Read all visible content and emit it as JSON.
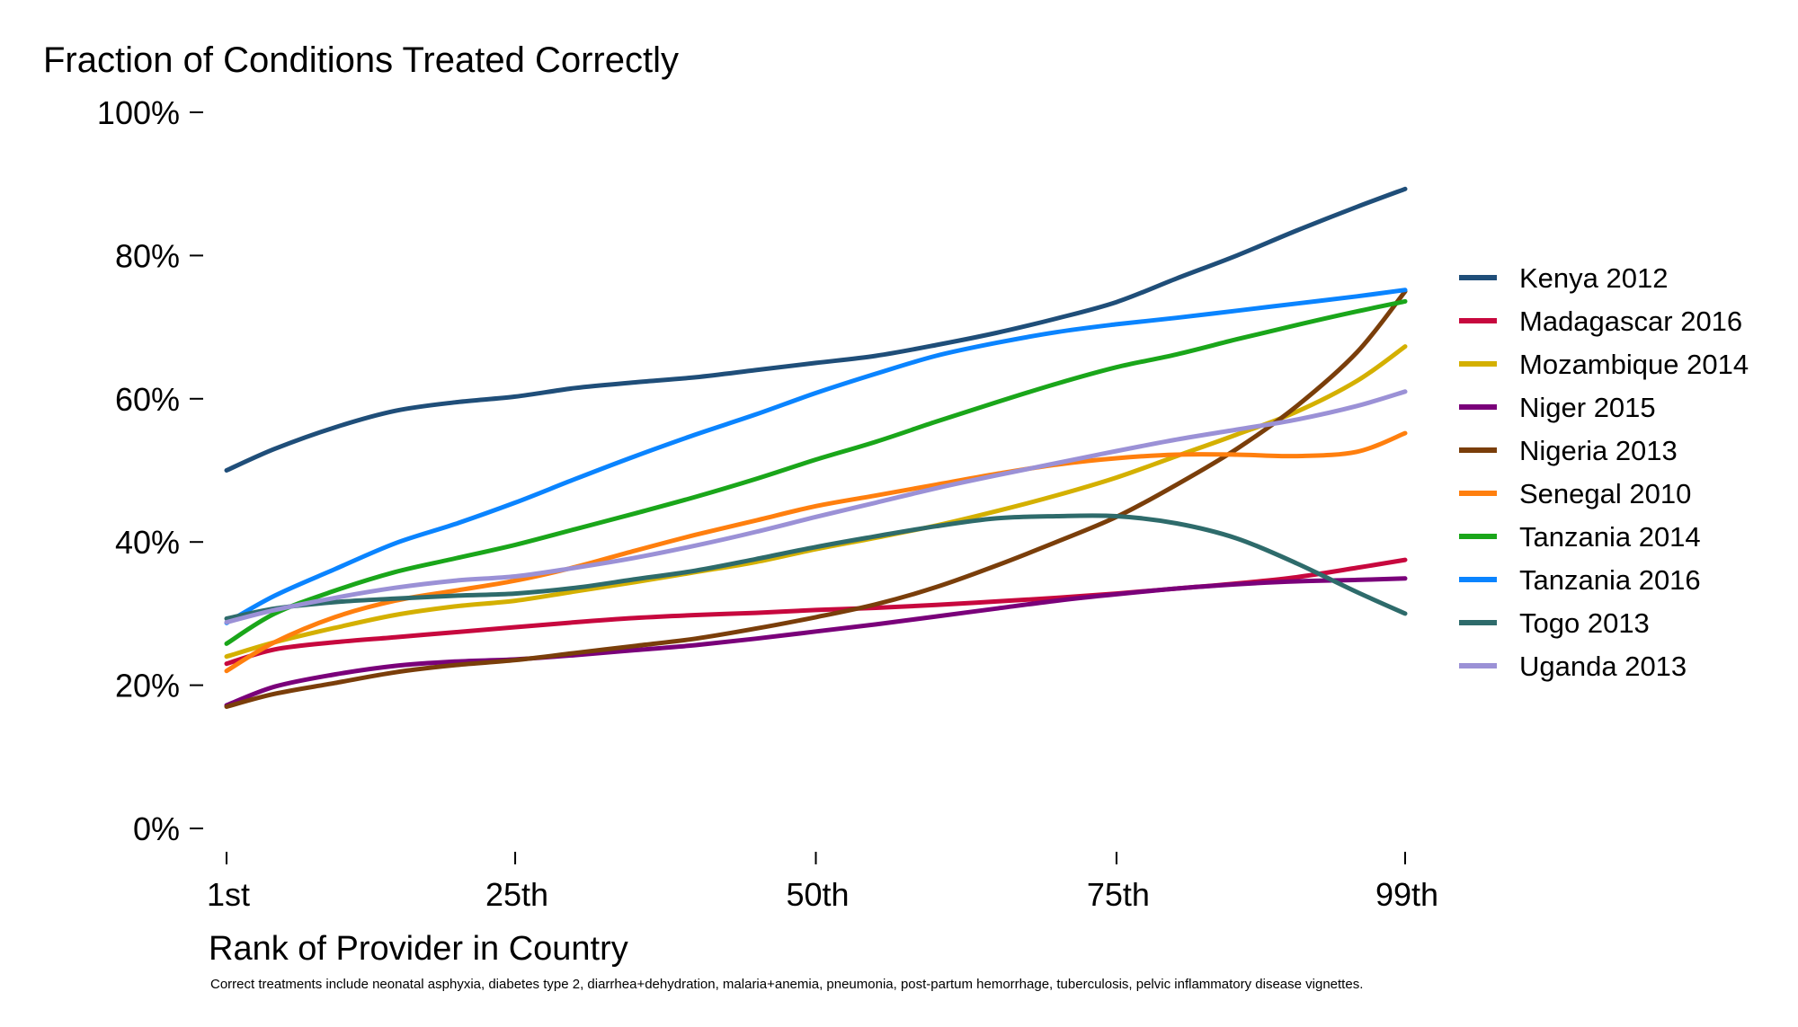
{
  "chart_data": {
    "type": "line",
    "title": "Fraction of Conditions Treated Correctly",
    "xlabel": "Rank of Provider in Country",
    "ylabel": "",
    "caption": "Correct treatments include neonatal asphyxia, diabetes type 2, diarrhea+dehydration, malaria+anemia, pneumonia, post-partum hemorrhage, tuberculosis, pelvic inflammatory disease vignettes.",
    "xlim": [
      1,
      99
    ],
    "ylim": [
      0,
      100
    ],
    "x_ticks": [
      1,
      25,
      50,
      75,
      99
    ],
    "x_tick_labels": [
      "1st",
      "25th",
      "50th",
      "75th",
      "99th"
    ],
    "y_ticks": [
      0,
      20,
      40,
      60,
      80,
      100
    ],
    "y_tick_labels": [
      "0%",
      "20%",
      "40%",
      "60%",
      "80%",
      "100%"
    ],
    "grid": false,
    "legend_position": "right",
    "x": [
      1,
      5,
      10,
      15,
      20,
      25,
      30,
      35,
      40,
      45,
      50,
      55,
      60,
      65,
      70,
      75,
      80,
      85,
      90,
      95,
      99
    ],
    "series": [
      {
        "name": "Kenya 2012",
        "color": "#1f4e79",
        "values": [
          50,
          53,
          56,
          58.3,
          59.5,
          60.3,
          61.5,
          62.3,
          63,
          64,
          65,
          66,
          67.5,
          69.2,
          71.2,
          73.5,
          76.8,
          80,
          83.5,
          86.8,
          89.3
        ]
      },
      {
        "name": "Madagascar 2016",
        "color": "#c7083e",
        "values": [
          23,
          25,
          26,
          26.7,
          27.4,
          28.1,
          28.8,
          29.4,
          29.8,
          30.1,
          30.5,
          30.8,
          31.2,
          31.7,
          32.2,
          32.8,
          33.5,
          34.2,
          35.1,
          36.4,
          37.5
        ]
      },
      {
        "name": "Mozambique 2014",
        "color": "#d4b000",
        "values": [
          24,
          26,
          28,
          29.8,
          31,
          31.8,
          33.1,
          34.4,
          35.8,
          37.2,
          39,
          40.6,
          42.3,
          44.3,
          46.5,
          49,
          52,
          55,
          58.2,
          62.5,
          67.3
        ]
      },
      {
        "name": "Niger 2015",
        "color": "#7a007a",
        "values": [
          17.2,
          19.8,
          21.5,
          22.7,
          23.3,
          23.6,
          24.2,
          24.9,
          25.6,
          26.5,
          27.5,
          28.5,
          29.6,
          30.7,
          31.8,
          32.7,
          33.5,
          34.1,
          34.5,
          34.7,
          34.9
        ]
      },
      {
        "name": "Nigeria 2013",
        "color": "#7a3e0a",
        "values": [
          17,
          18.8,
          20.3,
          21.8,
          22.8,
          23.5,
          24.5,
          25.5,
          26.5,
          27.9,
          29.5,
          31.3,
          33.7,
          36.7,
          40,
          43.5,
          48,
          53,
          59,
          66.5,
          75
        ]
      },
      {
        "name": "Senegal 2010",
        "color": "#ff7f0e",
        "values": [
          22,
          26,
          29.5,
          31.8,
          33.2,
          34.6,
          36.5,
          38.8,
          41,
          43,
          45,
          46.5,
          48,
          49.5,
          50.8,
          51.7,
          52.2,
          52.2,
          52,
          52.6,
          55.2
        ]
      },
      {
        "name": "Tanzania 2014",
        "color": "#1aa61a",
        "values": [
          25.8,
          30,
          33.2,
          35.8,
          37.7,
          39.6,
          41.8,
          44,
          46.3,
          48.8,
          51.5,
          54,
          56.8,
          59.5,
          62.1,
          64.4,
          66.2,
          68.3,
          70.3,
          72.2,
          73.6
        ]
      },
      {
        "name": "Tanzania 2016",
        "color": "#0a84ff",
        "values": [
          28.7,
          32.5,
          36.2,
          39.8,
          42.5,
          45.5,
          48.8,
          52,
          55,
          57.8,
          60.8,
          63.5,
          66,
          67.8,
          69.3,
          70.4,
          71.3,
          72.3,
          73.3,
          74.3,
          75.2
        ]
      },
      {
        "name": "Togo 2013",
        "color": "#2e6b6b",
        "values": [
          29.3,
          30.7,
          31.6,
          32.1,
          32.5,
          32.8,
          33.6,
          34.8,
          36,
          37.6,
          39.3,
          40.8,
          42.2,
          43.3,
          43.6,
          43.6,
          42.6,
          40.5,
          37,
          33,
          30
        ]
      },
      {
        "name": "Uganda 2013",
        "color": "#9b91d6",
        "values": [
          28.8,
          30.5,
          32.2,
          33.6,
          34.6,
          35.2,
          36.4,
          37.8,
          39.5,
          41.4,
          43.5,
          45.5,
          47.5,
          49.3,
          51,
          52.7,
          54.3,
          55.7,
          57.1,
          59,
          61
        ]
      }
    ]
  }
}
